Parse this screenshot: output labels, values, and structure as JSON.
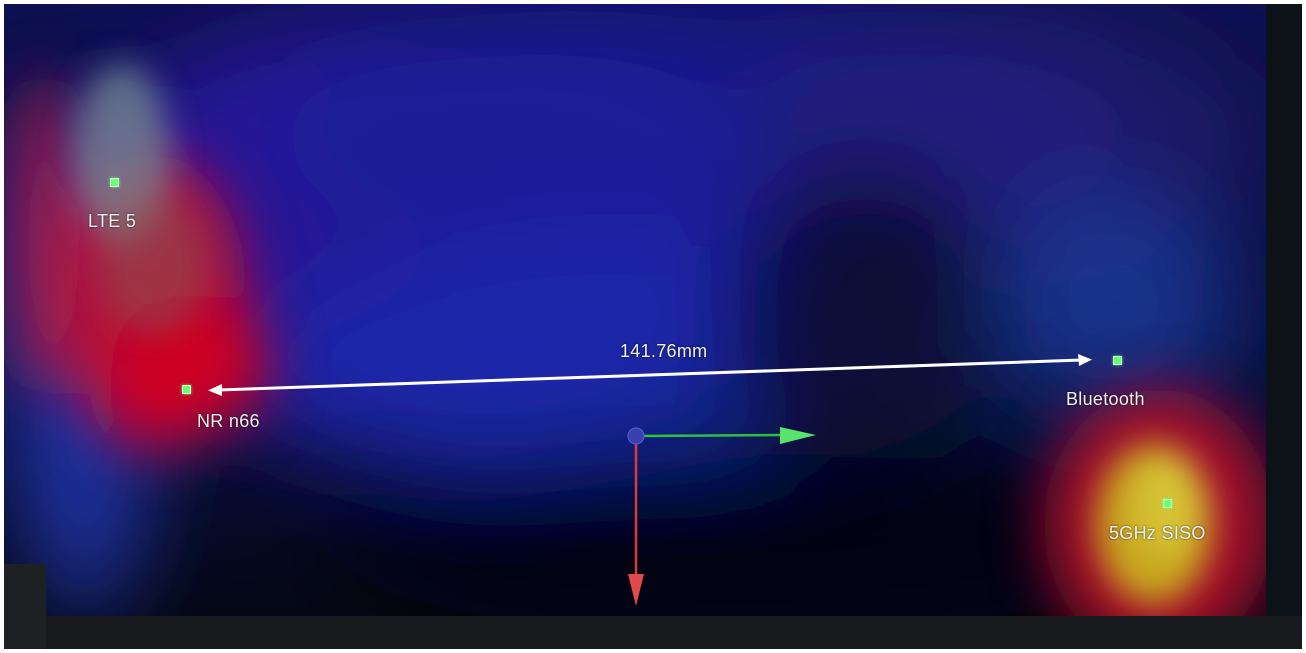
{
  "measurement": {
    "distance_label": "141.76mm"
  },
  "antennas": [
    {
      "id": "lte5",
      "label": "LTE 5"
    },
    {
      "id": "nrn66",
      "label": "NR n66"
    },
    {
      "id": "bluetooth",
      "label": "Bluetooth"
    },
    {
      "id": "wifi5g",
      "label": "5GHz SISO"
    }
  ],
  "colors": {
    "marker": "#6dff78",
    "axis_x": "#2fbf3f",
    "axis_y": "#d93a3a",
    "origin": "#3a3fb0",
    "measure_line": "#ffffff"
  },
  "icons": {
    "origin": "axis-origin-icon",
    "x_axis": "x-axis-arrow-icon",
    "y_axis": "y-axis-arrow-icon"
  }
}
